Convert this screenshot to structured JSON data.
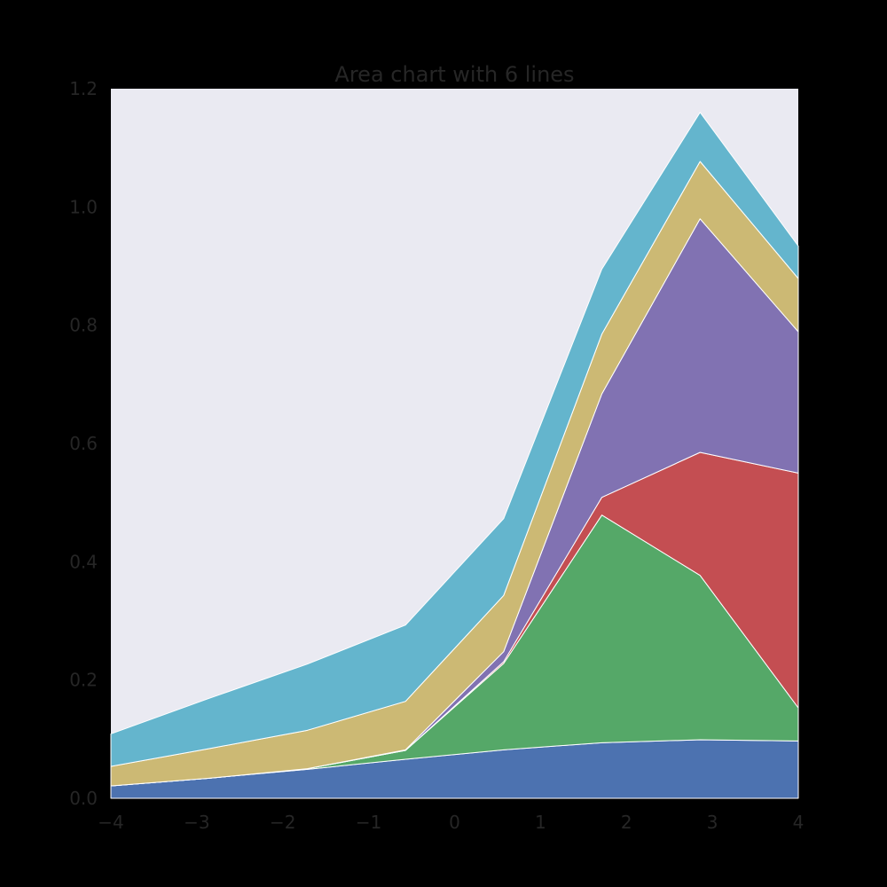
{
  "chart_data": {
    "type": "area",
    "stacked": true,
    "title": "Area chart with 6 lines",
    "xlabel": "",
    "ylabel": "",
    "xlim": [
      -4,
      4
    ],
    "ylim": [
      0,
      1.2
    ],
    "x": [
      -4.0,
      -2.857,
      -1.714,
      -0.571,
      0.571,
      1.714,
      2.857,
      4.0
    ],
    "xticks": [
      -4,
      -3,
      -2,
      -1,
      0,
      1,
      2,
      3,
      4
    ],
    "xtick_labels": [
      "−4",
      "−3",
      "−2",
      "−1",
      "0",
      "1",
      "2",
      "3",
      "4"
    ],
    "yticks": [
      0,
      0.2,
      0.4,
      0.6,
      0.8,
      1.0,
      1.2
    ],
    "ytick_labels": [
      "0.0",
      "0.2",
      "0.4",
      "0.6",
      "0.8",
      "1.0",
      "1.2"
    ],
    "grid": false,
    "legend": "none",
    "background": "#eaeaf2",
    "series": [
      {
        "color": "#4c72b0",
        "values": [
          0.021,
          0.034,
          0.049,
          0.066,
          0.082,
          0.094,
          0.099,
          0.097
        ]
      },
      {
        "color": "#55a868",
        "values": [
          0.0,
          0.0,
          0.001,
          0.015,
          0.146,
          0.385,
          0.278,
          0.056
        ]
      },
      {
        "color": "#c44e52",
        "values": [
          0.0,
          0.0,
          0.0,
          0.0,
          0.003,
          0.03,
          0.208,
          0.397
        ]
      },
      {
        "color": "#8172b2",
        "values": [
          0.0,
          0.0,
          0.0,
          0.001,
          0.017,
          0.175,
          0.395,
          0.239
        ]
      },
      {
        "color": "#ccb974",
        "values": [
          0.033,
          0.05,
          0.065,
          0.082,
          0.095,
          0.101,
          0.097,
          0.09
        ]
      },
      {
        "color": "#64b5cd",
        "values": [
          0.055,
          0.085,
          0.112,
          0.129,
          0.13,
          0.11,
          0.083,
          0.055
        ]
      }
    ]
  }
}
